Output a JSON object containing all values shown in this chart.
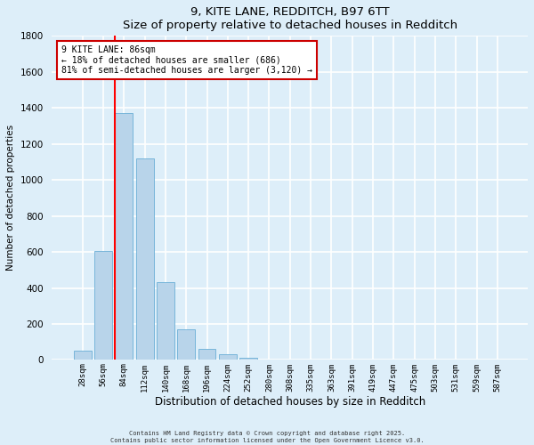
{
  "title1": "9, KITE LANE, REDDITCH, B97 6TT",
  "title2": "Size of property relative to detached houses in Redditch",
  "xlabel": "Distribution of detached houses by size in Redditch",
  "ylabel": "Number of detached properties",
  "categories": [
    "28sqm",
    "56sqm",
    "84sqm",
    "112sqm",
    "140sqm",
    "168sqm",
    "196sqm",
    "224sqm",
    "252sqm",
    "280sqm",
    "308sqm",
    "335sqm",
    "363sqm",
    "391sqm",
    "419sqm",
    "447sqm",
    "475sqm",
    "503sqm",
    "531sqm",
    "559sqm",
    "587sqm"
  ],
  "values": [
    50,
    605,
    1370,
    1120,
    430,
    170,
    60,
    30,
    10,
    3,
    2,
    0,
    0,
    0,
    0,
    0,
    0,
    0,
    0,
    0,
    0
  ],
  "bar_color": "#b8d4ea",
  "bar_edge_color": "#6aaed6",
  "background_color": "#ddeef9",
  "grid_color": "#ffffff",
  "red_line_index": 2,
  "annotation_text": "9 KITE LANE: 86sqm\n← 18% of detached houses are smaller (686)\n81% of semi-detached houses are larger (3,120) →",
  "annotation_box_color": "#ffffff",
  "annotation_box_edge": "#cc0000",
  "ylim": [
    0,
    1800
  ],
  "yticks": [
    0,
    200,
    400,
    600,
    800,
    1000,
    1200,
    1400,
    1600,
    1800
  ],
  "footer1": "Contains HM Land Registry data © Crown copyright and database right 2025.",
  "footer2": "Contains public sector information licensed under the Open Government Licence v3.0."
}
